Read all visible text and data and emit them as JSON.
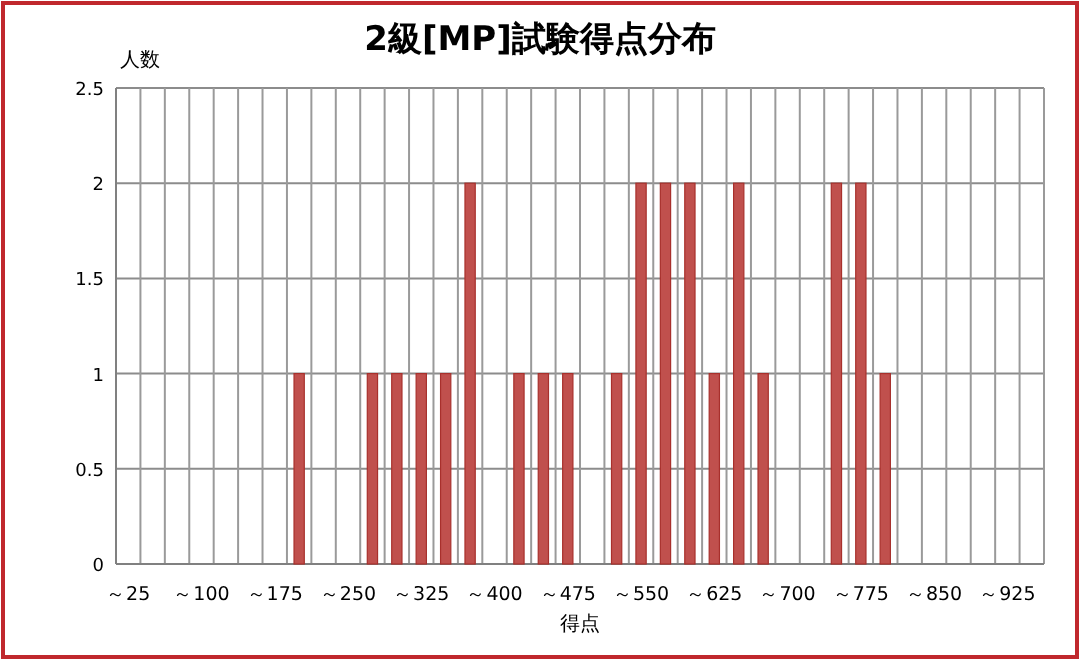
{
  "chart_data": {
    "type": "bar",
    "title": "2級[MP]試験得点分布",
    "xlabel": "得点",
    "ylabel": "人数",
    "categories": [
      "～25",
      null,
      null,
      "～100",
      null,
      null,
      "～175",
      null,
      null,
      "～250",
      null,
      null,
      "～325",
      null,
      null,
      "～400",
      null,
      null,
      "～475",
      null,
      null,
      "～550",
      null,
      null,
      "～625",
      null,
      null,
      "～700",
      null,
      null,
      "～775",
      null,
      null,
      "～850",
      null,
      null,
      "～925",
      null
    ],
    "values": [
      0,
      0,
      0,
      0,
      0,
      0,
      0,
      1,
      0,
      0,
      1,
      1,
      1,
      1,
      2,
      0,
      1,
      1,
      1,
      0,
      1,
      2,
      2,
      2,
      1,
      2,
      1,
      0,
      0,
      2,
      2,
      1,
      0,
      0,
      0,
      0,
      0,
      0
    ],
    "color": "#c0504d",
    "ylim": [
      0,
      2.5
    ],
    "yticks": [
      0,
      0.5,
      1,
      1.5,
      2,
      2.5
    ],
    "grid": true
  }
}
